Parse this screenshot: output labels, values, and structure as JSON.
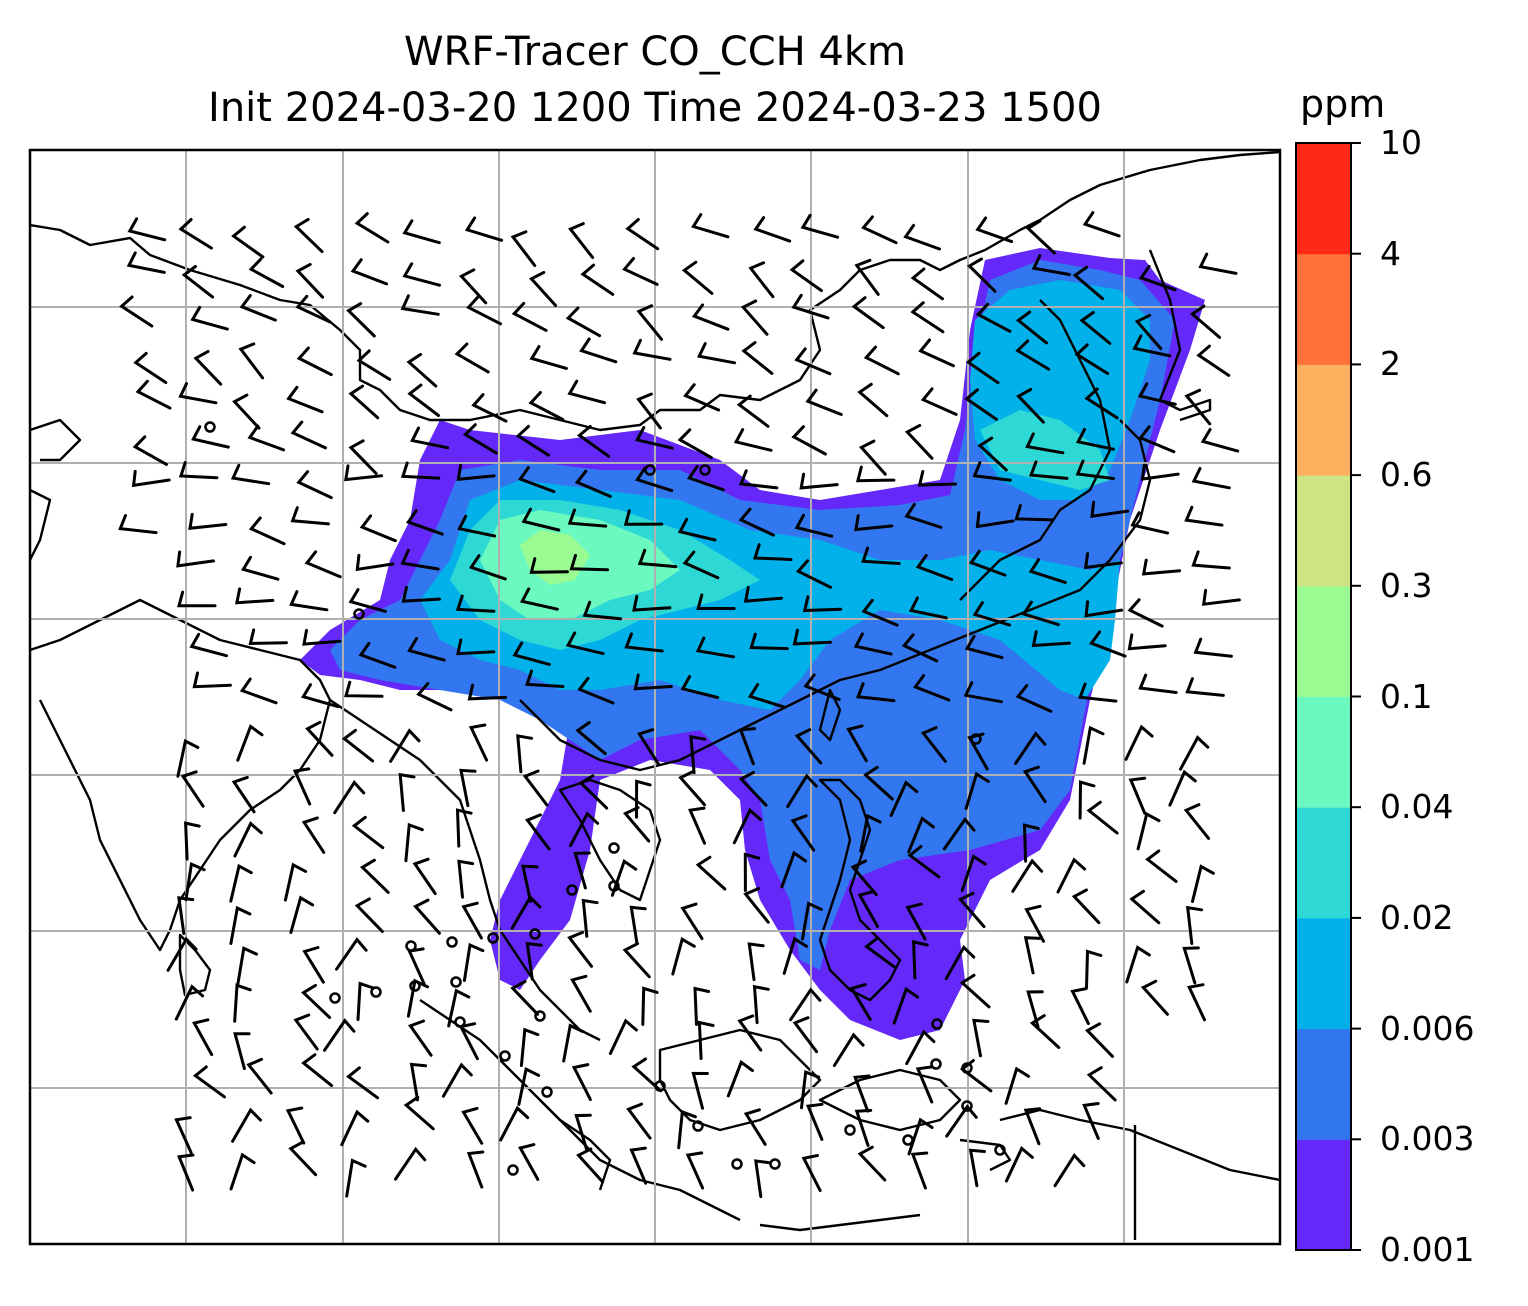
{
  "title": {
    "line1": "WRF-Tracer CO_CCH 4km",
    "line2": "Init 2024-03-20 1200 Time 2024-03-23 1500"
  },
  "colorbar": {
    "unit": "ppm",
    "levels": [
      "0.001",
      "0.003",
      "0.006",
      "0.02",
      "0.04",
      "0.1",
      "0.3",
      "0.6",
      "2",
      "4",
      "10"
    ],
    "colors": [
      "#6428f8",
      "#3377f0",
      "#02b1ea",
      "#2ed9d5",
      "#6cf9c0",
      "#9afb93",
      "#cfe384",
      "#fdb05e",
      "#ff7139",
      "#fe2a17"
    ]
  },
  "map": {
    "plume_colors": {
      "outer": "#6428f8",
      "low": "#3377f0",
      "mid": "#02b1ea",
      "midhigh": "#2ed9d5",
      "high": "#6cf9c0",
      "peak": "#9afb93"
    },
    "gridline_color": "#b0b0b0",
    "coastline_color": "#000000"
  }
}
